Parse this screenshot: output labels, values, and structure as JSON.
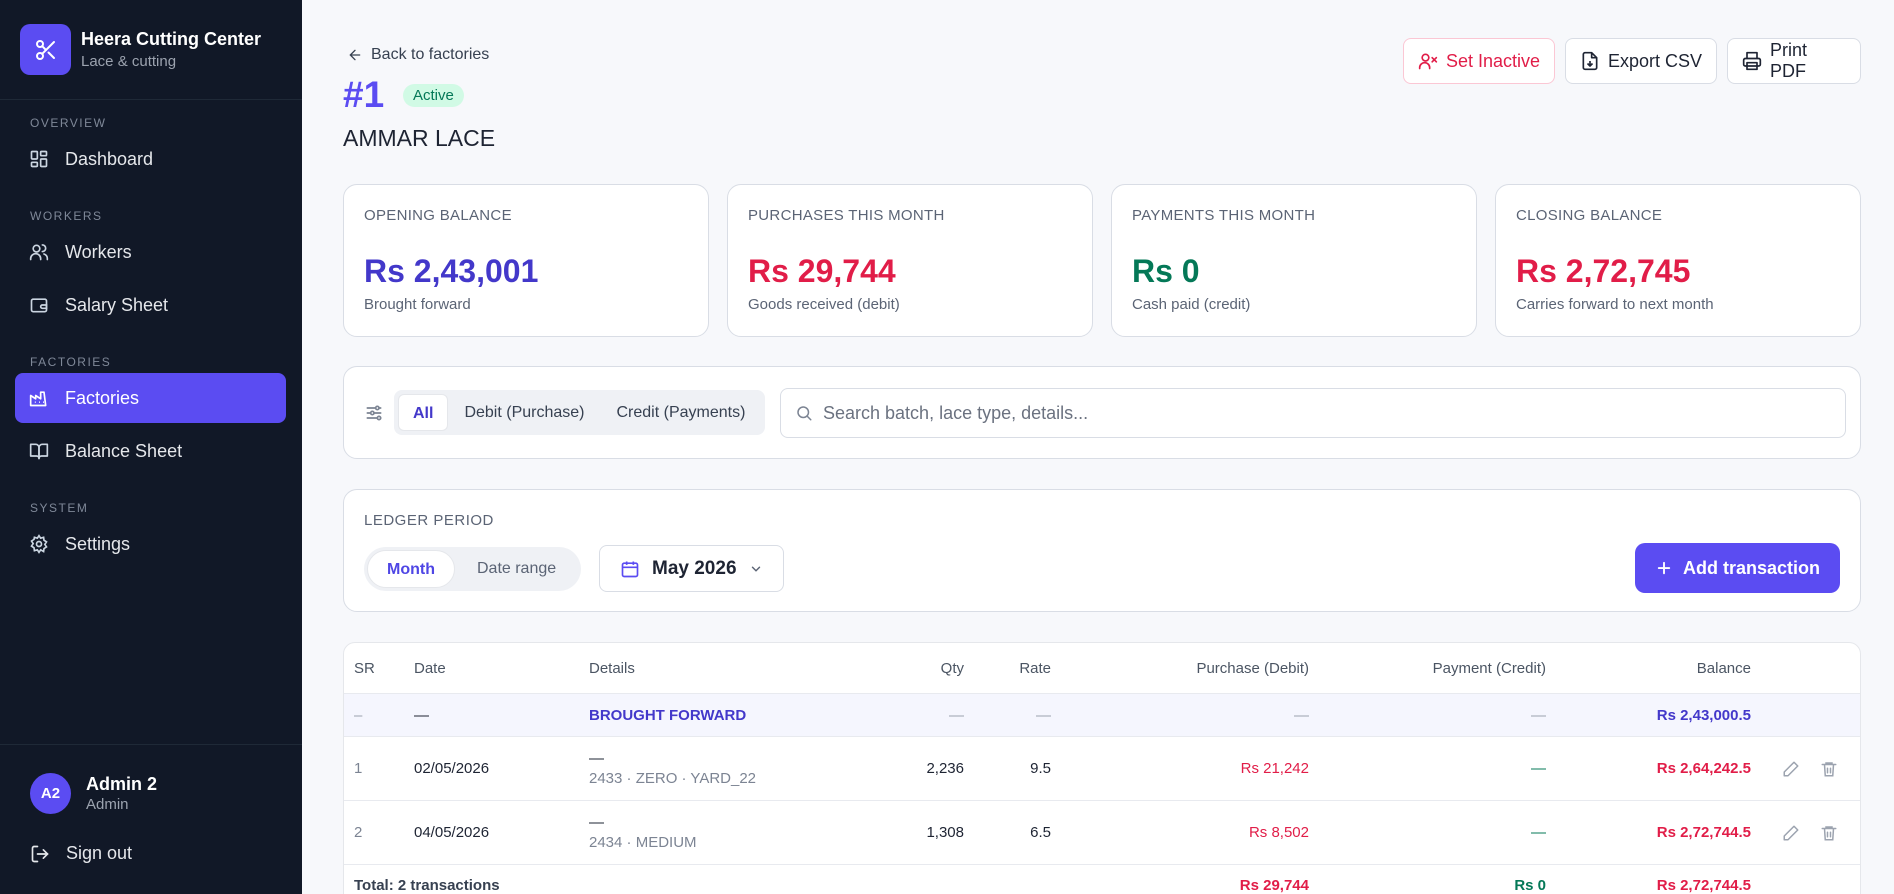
{
  "sidebar": {
    "brand_name": "Heera Cutting Center",
    "brand_sub": "Lace & cutting",
    "sections": {
      "overview": "OVERVIEW",
      "workers": "WORKERS",
      "factories": "FACTORIES",
      "system": "SYSTEM"
    },
    "items": [
      {
        "label": "Dashboard",
        "icon": "grid-icon"
      },
      {
        "label": "Workers",
        "icon": "users-icon"
      },
      {
        "label": "Salary Sheet",
        "icon": "wallet-icon"
      },
      {
        "label": "Factories",
        "icon": "factory-icon",
        "active": true
      },
      {
        "label": "Balance Sheet",
        "icon": "book-icon"
      },
      {
        "label": "Settings",
        "icon": "gear-icon"
      }
    ],
    "user": {
      "initials": "A2",
      "name": "Admin 2",
      "role": "Admin"
    },
    "sign_out": "Sign out"
  },
  "header": {
    "back": "Back to factories",
    "factory_number": "#1",
    "status": "Active",
    "factory_name": "AMMAR LACE",
    "actions": {
      "set_inactive": "Set Inactive",
      "export_csv": "Export CSV",
      "print_pdf": "Print PDF"
    }
  },
  "summary": [
    {
      "label": "OPENING BALANCE",
      "value": "Rs 2,43,001",
      "sub": "Brought forward",
      "color": "#4338ca"
    },
    {
      "label": "PURCHASES THIS MONTH",
      "value": "Rs 29,744",
      "sub": "Goods received (debit)",
      "color": "#e11d48"
    },
    {
      "label": "PAYMENTS THIS MONTH",
      "value": "Rs 0",
      "sub": "Cash paid (credit)",
      "color": "#047857"
    },
    {
      "label": "CLOSING BALANCE",
      "value": "Rs 2,72,745",
      "sub": "Carries forward to next month",
      "color": "#e11d48"
    }
  ],
  "filters": {
    "tabs": [
      "All",
      "Debit (Purchase)",
      "Credit (Payments)"
    ],
    "active": "All",
    "search_placeholder": "Search batch, lace type, details..."
  },
  "period": {
    "title": "LEDGER PERIOD",
    "modes": [
      "Month",
      "Date range"
    ],
    "active": "Month",
    "selected": "May 2026",
    "add_label": "Add transaction"
  },
  "table": {
    "headers": [
      "SR",
      "Date",
      "Details",
      "Qty",
      "Rate",
      "Purchase (Debit)",
      "Payment (Credit)",
      "Balance"
    ],
    "brought_forward": {
      "sr": "–",
      "date": "—",
      "label": "BROUGHT FORWARD",
      "qty": "—",
      "rate": "—",
      "debit": "—",
      "credit": "—",
      "balance": "Rs 2,43,000.5"
    },
    "rows": [
      {
        "sr": "1",
        "date": "02/05/2026",
        "detail": "—",
        "sub": "2433 · ZERO · YARD_22",
        "qty": "2,236",
        "rate": "9.5",
        "debit": "Rs 21,242",
        "credit": "—",
        "balance": "Rs 2,64,242.5"
      },
      {
        "sr": "2",
        "date": "04/05/2026",
        "detail": "—",
        "sub": "2434 · MEDIUM",
        "qty": "1,308",
        "rate": "6.5",
        "debit": "Rs 8,502",
        "credit": "—",
        "balance": "Rs 2,72,744.5"
      }
    ],
    "total": {
      "label": "Total: 2 transactions",
      "debit": "Rs 29,744",
      "credit": "Rs 0",
      "balance": "Rs 2,72,744.5"
    }
  }
}
